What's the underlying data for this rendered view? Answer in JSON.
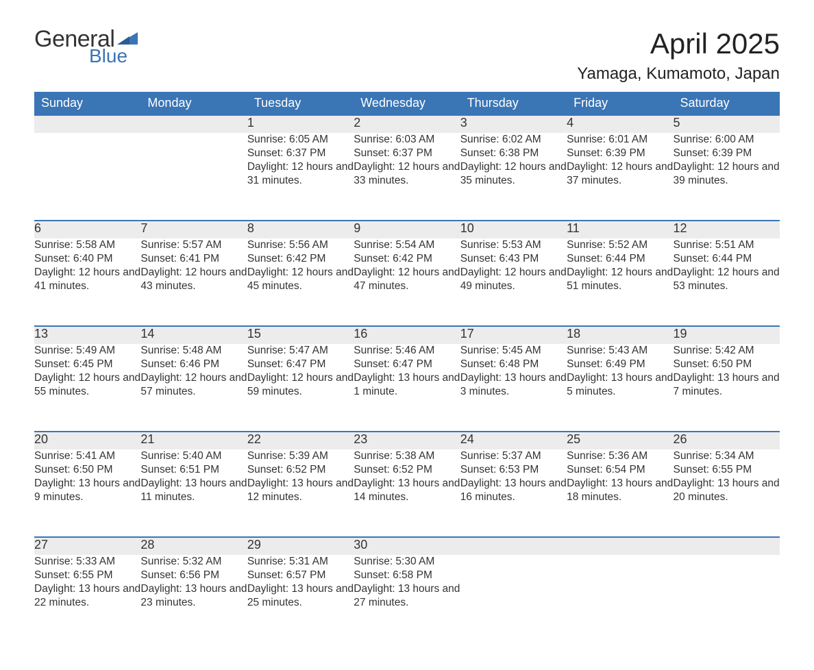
{
  "logo": {
    "text_top": "General",
    "text_bottom": "Blue",
    "accent_color": "#3a75b5"
  },
  "title": "April 2025",
  "location": "Yamaga, Kumamoto, Japan",
  "colors": {
    "header_bg": "#3a75b5",
    "header_text": "#ffffff",
    "daynum_bg": "#ececec",
    "text": "#333333",
    "row_border": "#3a75b5",
    "page_bg": "#ffffff"
  },
  "day_headers": [
    "Sunday",
    "Monday",
    "Tuesday",
    "Wednesday",
    "Thursday",
    "Friday",
    "Saturday"
  ],
  "weeks": [
    [
      null,
      null,
      {
        "n": "1",
        "sunrise": "6:05 AM",
        "sunset": "6:37 PM",
        "daylight": "12 hours and 31 minutes."
      },
      {
        "n": "2",
        "sunrise": "6:03 AM",
        "sunset": "6:37 PM",
        "daylight": "12 hours and 33 minutes."
      },
      {
        "n": "3",
        "sunrise": "6:02 AM",
        "sunset": "6:38 PM",
        "daylight": "12 hours and 35 minutes."
      },
      {
        "n": "4",
        "sunrise": "6:01 AM",
        "sunset": "6:39 PM",
        "daylight": "12 hours and 37 minutes."
      },
      {
        "n": "5",
        "sunrise": "6:00 AM",
        "sunset": "6:39 PM",
        "daylight": "12 hours and 39 minutes."
      }
    ],
    [
      {
        "n": "6",
        "sunrise": "5:58 AM",
        "sunset": "6:40 PM",
        "daylight": "12 hours and 41 minutes."
      },
      {
        "n": "7",
        "sunrise": "5:57 AM",
        "sunset": "6:41 PM",
        "daylight": "12 hours and 43 minutes."
      },
      {
        "n": "8",
        "sunrise": "5:56 AM",
        "sunset": "6:42 PM",
        "daylight": "12 hours and 45 minutes."
      },
      {
        "n": "9",
        "sunrise": "5:54 AM",
        "sunset": "6:42 PM",
        "daylight": "12 hours and 47 minutes."
      },
      {
        "n": "10",
        "sunrise": "5:53 AM",
        "sunset": "6:43 PM",
        "daylight": "12 hours and 49 minutes."
      },
      {
        "n": "11",
        "sunrise": "5:52 AM",
        "sunset": "6:44 PM",
        "daylight": "12 hours and 51 minutes."
      },
      {
        "n": "12",
        "sunrise": "5:51 AM",
        "sunset": "6:44 PM",
        "daylight": "12 hours and 53 minutes."
      }
    ],
    [
      {
        "n": "13",
        "sunrise": "5:49 AM",
        "sunset": "6:45 PM",
        "daylight": "12 hours and 55 minutes."
      },
      {
        "n": "14",
        "sunrise": "5:48 AM",
        "sunset": "6:46 PM",
        "daylight": "12 hours and 57 minutes."
      },
      {
        "n": "15",
        "sunrise": "5:47 AM",
        "sunset": "6:47 PM",
        "daylight": "12 hours and 59 minutes."
      },
      {
        "n": "16",
        "sunrise": "5:46 AM",
        "sunset": "6:47 PM",
        "daylight": "13 hours and 1 minute."
      },
      {
        "n": "17",
        "sunrise": "5:45 AM",
        "sunset": "6:48 PM",
        "daylight": "13 hours and 3 minutes."
      },
      {
        "n": "18",
        "sunrise": "5:43 AM",
        "sunset": "6:49 PM",
        "daylight": "13 hours and 5 minutes."
      },
      {
        "n": "19",
        "sunrise": "5:42 AM",
        "sunset": "6:50 PM",
        "daylight": "13 hours and 7 minutes."
      }
    ],
    [
      {
        "n": "20",
        "sunrise": "5:41 AM",
        "sunset": "6:50 PM",
        "daylight": "13 hours and 9 minutes."
      },
      {
        "n": "21",
        "sunrise": "5:40 AM",
        "sunset": "6:51 PM",
        "daylight": "13 hours and 11 minutes."
      },
      {
        "n": "22",
        "sunrise": "5:39 AM",
        "sunset": "6:52 PM",
        "daylight": "13 hours and 12 minutes."
      },
      {
        "n": "23",
        "sunrise": "5:38 AM",
        "sunset": "6:52 PM",
        "daylight": "13 hours and 14 minutes."
      },
      {
        "n": "24",
        "sunrise": "5:37 AM",
        "sunset": "6:53 PM",
        "daylight": "13 hours and 16 minutes."
      },
      {
        "n": "25",
        "sunrise": "5:36 AM",
        "sunset": "6:54 PM",
        "daylight": "13 hours and 18 minutes."
      },
      {
        "n": "26",
        "sunrise": "5:34 AM",
        "sunset": "6:55 PM",
        "daylight": "13 hours and 20 minutes."
      }
    ],
    [
      {
        "n": "27",
        "sunrise": "5:33 AM",
        "sunset": "6:55 PM",
        "daylight": "13 hours and 22 minutes."
      },
      {
        "n": "28",
        "sunrise": "5:32 AM",
        "sunset": "6:56 PM",
        "daylight": "13 hours and 23 minutes."
      },
      {
        "n": "29",
        "sunrise": "5:31 AM",
        "sunset": "6:57 PM",
        "daylight": "13 hours and 25 minutes."
      },
      {
        "n": "30",
        "sunrise": "5:30 AM",
        "sunset": "6:58 PM",
        "daylight": "13 hours and 27 minutes."
      },
      null,
      null,
      null
    ]
  ],
  "labels": {
    "sunrise": "Sunrise: ",
    "sunset": "Sunset: ",
    "daylight": "Daylight: "
  },
  "typography": {
    "month_title_fontsize": 42,
    "location_fontsize": 24,
    "dayheader_fontsize": 18,
    "daynum_fontsize": 18,
    "body_fontsize": 15.5
  }
}
